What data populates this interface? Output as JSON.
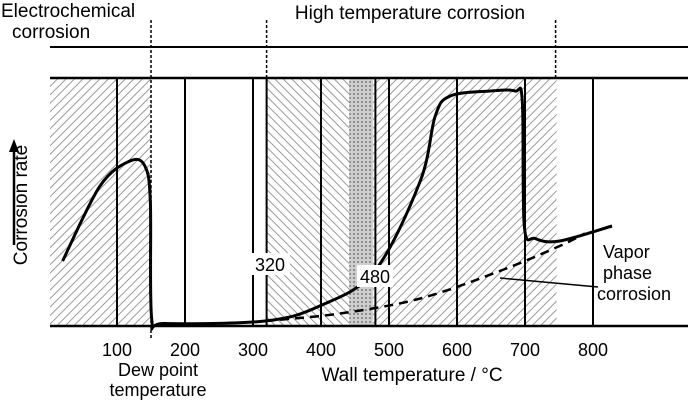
{
  "chart_data": {
    "type": "line",
    "xlabel": "Wall temperature / °C",
    "ylabel": "Corrosion rate",
    "x_ticks": [
      "100",
      "200",
      "300",
      "400",
      "500",
      "600",
      "700",
      "800"
    ],
    "x_tick_values": [
      100,
      200,
      300,
      400,
      500,
      600,
      700,
      800
    ],
    "xlim": [
      0,
      935
    ],
    "ylim": [
      0,
      100
    ],
    "regions": {
      "left": "Electrochemical corrosion",
      "right": "High temperature corrosion"
    },
    "annotations": {
      "dew_point_line1": "Dew point",
      "dew_point_line2": "temperature",
      "mark_320": "320",
      "mark_480": "480",
      "vapor_line1": "Vapor",
      "vapor_line2": "phase",
      "vapor_line3": "corrosion"
    },
    "marks": {
      "dew_point": 150,
      "t320": 320,
      "t480": 480,
      "high_temp_end": 745
    },
    "series": [
      {
        "style": "solid",
        "points": [
          [
            20,
            26
          ],
          [
            75,
            56
          ],
          [
            119,
            66
          ],
          [
            141,
            64
          ],
          [
            149,
            50
          ],
          [
            151,
            3
          ],
          [
            170,
            1
          ],
          [
            318,
            2
          ],
          [
            398,
            8
          ],
          [
            479,
            22
          ],
          [
            546,
            58
          ],
          [
            568,
            84
          ],
          [
            590,
            92
          ],
          [
            649,
            94
          ],
          [
            685,
            94
          ],
          [
            696,
            90
          ],
          [
            699,
            40
          ],
          [
            715,
            35
          ],
          [
            751,
            34
          ],
          [
            828,
            40
          ]
        ]
      },
      {
        "style": "dashed",
        "points": [
          [
            318,
            2
          ],
          [
            428,
            5
          ],
          [
            546,
            11
          ],
          [
            663,
            22
          ],
          [
            751,
            32
          ],
          [
            788,
            37
          ]
        ]
      }
    ],
    "hatched_bands": [
      {
        "from": 0,
        "to": 150,
        "pattern": "forward"
      },
      {
        "from": 318,
        "to": 440,
        "pattern": "backward"
      },
      {
        "from": 440,
        "to": 475,
        "pattern": "cross"
      },
      {
        "from": 475,
        "to": 745,
        "pattern": "forward"
      }
    ]
  }
}
